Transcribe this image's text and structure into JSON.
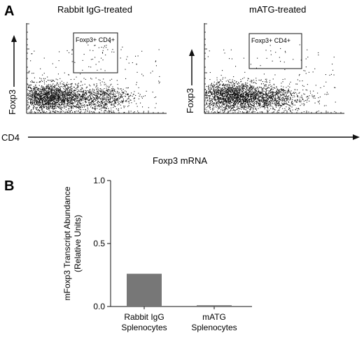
{
  "panel_a": {
    "label": "A",
    "left_title": "Rabbit IgG-treated",
    "right_title": "mATG-treated",
    "gate_label": "Foxp3+ CD4+",
    "y_axis_label": "Foxp3",
    "x_axis_label": "CD4"
  },
  "panel_b": {
    "label": "B"
  },
  "caption": "Foxp3 mRNA",
  "chart_data": [
    {
      "type": "scatter",
      "title": "Rabbit IgG-treated",
      "xlabel": "CD4",
      "ylabel": "Foxp3",
      "gate": "Foxp3+ CD4+",
      "note": "flow cytometry dot plot; dense population at low Foxp3, sparse events inside gate"
    },
    {
      "type": "scatter",
      "title": "mATG-treated",
      "xlabel": "CD4",
      "ylabel": "Foxp3",
      "gate": "Foxp3+ CD4+",
      "note": "flow cytometry dot plot; dense population at low Foxp3, fewer events inside gate"
    },
    {
      "type": "bar",
      "categories": [
        [
          "Rabbit IgG",
          "Splenocytes"
        ],
        [
          "mATG",
          "Splenocytes"
        ]
      ],
      "values": [
        0.26,
        0.01
      ],
      "ylabel_lines": [
        "mFoxp3 Transcript Abundance",
        "(Relative Units)"
      ],
      "ylim": [
        0,
        1.0
      ],
      "yticks": [
        "0.0",
        "0.5",
        "1.0"
      ],
      "bar_color": "#777777"
    }
  ]
}
